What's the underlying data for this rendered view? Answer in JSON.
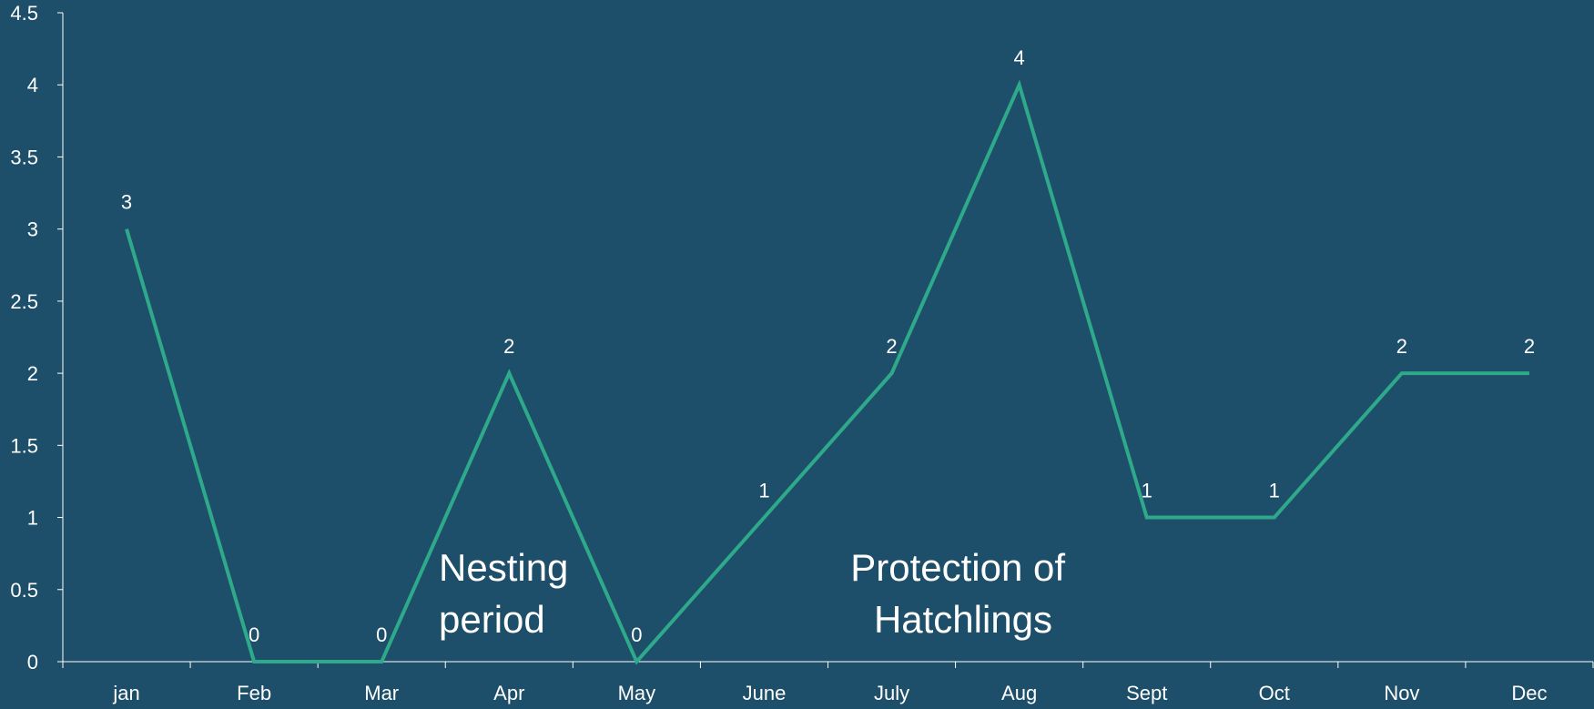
{
  "chart_data": {
    "type": "line",
    "categories": [
      "jan",
      "Feb",
      "Mar",
      "Apr",
      "May",
      "June",
      "July",
      "Aug",
      "Sept",
      "Oct",
      "Nov",
      "Dec"
    ],
    "series": [
      {
        "values": [
          3,
          0,
          0,
          2,
          0,
          1,
          2,
          4,
          1,
          1,
          2,
          2
        ]
      }
    ],
    "ylim": [
      0,
      4.5
    ],
    "yticks": [
      "0",
      "0.5",
      "1",
      "1.5",
      "2",
      "2.5",
      "3",
      "3.5",
      "4",
      "4.5"
    ],
    "data_labels": [
      "3",
      "0",
      "0",
      "2",
      "0",
      "1",
      "2",
      "4",
      "1",
      "1",
      "2",
      "2"
    ],
    "annotations": [
      {
        "lines": [
          "Nesting",
          "period"
        ]
      },
      {
        "lines": [
          "Protection of",
          "Hatchlings"
        ]
      }
    ],
    "grid": false,
    "legend": "none"
  },
  "colors": {
    "background": "#1e4f6a",
    "line": "#2ea98a",
    "text": "#ffffff"
  }
}
